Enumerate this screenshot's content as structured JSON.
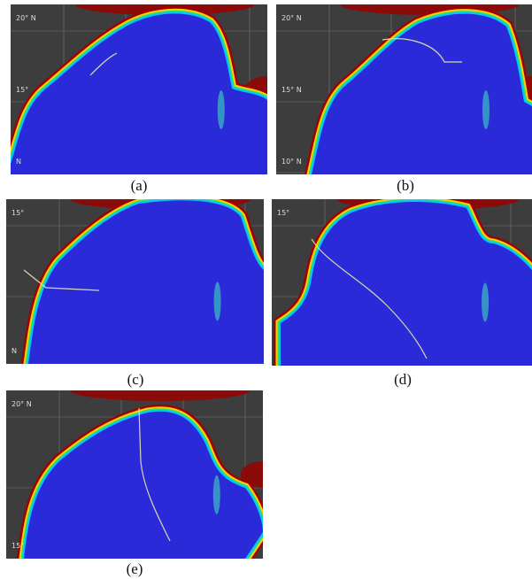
{
  "panels": [
    {
      "label": "(a)",
      "lat_labels": [
        "20° N",
        "15°",
        "N"
      ]
    },
    {
      "label": "(b)",
      "lat_labels": [
        "20° N",
        "15° N",
        "10° N"
      ]
    },
    {
      "label": "(c)",
      "lat_labels": [
        "15°",
        "N"
      ]
    },
    {
      "label": "(d)",
      "lat_labels": [
        "15°"
      ]
    },
    {
      "label": "(e)",
      "lat_labels": [
        "20° N",
        "15°"
      ]
    }
  ]
}
